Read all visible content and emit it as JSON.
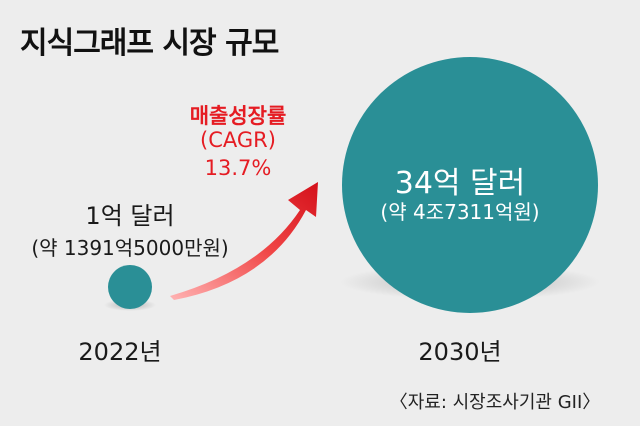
{
  "title": "지식그래프 시장 규모",
  "chart_data": {
    "type": "bubble",
    "categories": [
      "2022년",
      "2030년"
    ],
    "values": [
      1,
      34
    ],
    "unit": "억 달러",
    "value_labels": [
      "1억 달러",
      "34억 달러"
    ],
    "sub_labels": [
      "(약 1391억5000만원)",
      "(약 4조7311억원)"
    ],
    "growth": {
      "label": "매출성장률",
      "metric": "(CAGR)",
      "value_text": "13.7%",
      "value": 13.7
    }
  },
  "source": "〈자료: 시장조사기관 GII〉",
  "colors": {
    "bubble": "#2a8f96",
    "arrow": "#e51c23",
    "background": "#ededed"
  }
}
